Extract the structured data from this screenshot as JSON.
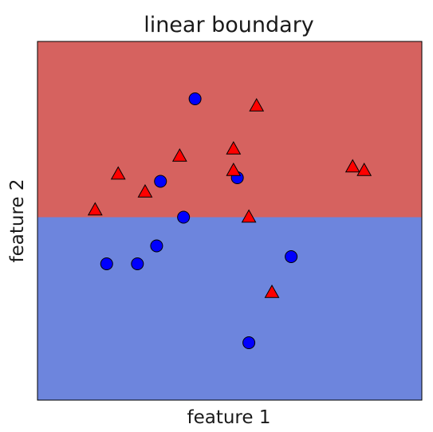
{
  "chart_data": {
    "type": "scatter",
    "title": "linear boundary",
    "xlabel": "feature 1",
    "ylabel": "feature 2",
    "xlim": [
      0,
      10
    ],
    "ylim": [
      0,
      10
    ],
    "xticks_visible": false,
    "yticks_visible": false,
    "grid": false,
    "legend": "none",
    "decision_boundary": {
      "orientation": "horizontal",
      "y": 5.1,
      "region_above_color": "#d6625f",
      "region_below_color": "#6d85dd"
    },
    "series": [
      {
        "marker": "circle",
        "color": "#0000ff",
        "points": [
          {
            "x": 4.1,
            "y": 8.4
          },
          {
            "x": 3.2,
            "y": 6.1
          },
          {
            "x": 5.2,
            "y": 6.2
          },
          {
            "x": 3.8,
            "y": 5.1
          },
          {
            "x": 3.1,
            "y": 4.3
          },
          {
            "x": 1.8,
            "y": 3.8
          },
          {
            "x": 2.6,
            "y": 3.8
          },
          {
            "x": 6.6,
            "y": 4.0
          },
          {
            "x": 5.5,
            "y": 1.6
          }
        ]
      },
      {
        "marker": "triangle",
        "color": "#ff0000",
        "points": [
          {
            "x": 5.7,
            "y": 8.2
          },
          {
            "x": 5.1,
            "y": 7.0
          },
          {
            "x": 3.7,
            "y": 6.8
          },
          {
            "x": 5.1,
            "y": 6.4
          },
          {
            "x": 8.2,
            "y": 6.5
          },
          {
            "x": 8.5,
            "y": 6.4
          },
          {
            "x": 2.1,
            "y": 6.3
          },
          {
            "x": 2.8,
            "y": 5.8
          },
          {
            "x": 1.5,
            "y": 5.3
          },
          {
            "x": 5.5,
            "y": 5.1
          },
          {
            "x": 6.1,
            "y": 3.0
          }
        ]
      }
    ]
  }
}
